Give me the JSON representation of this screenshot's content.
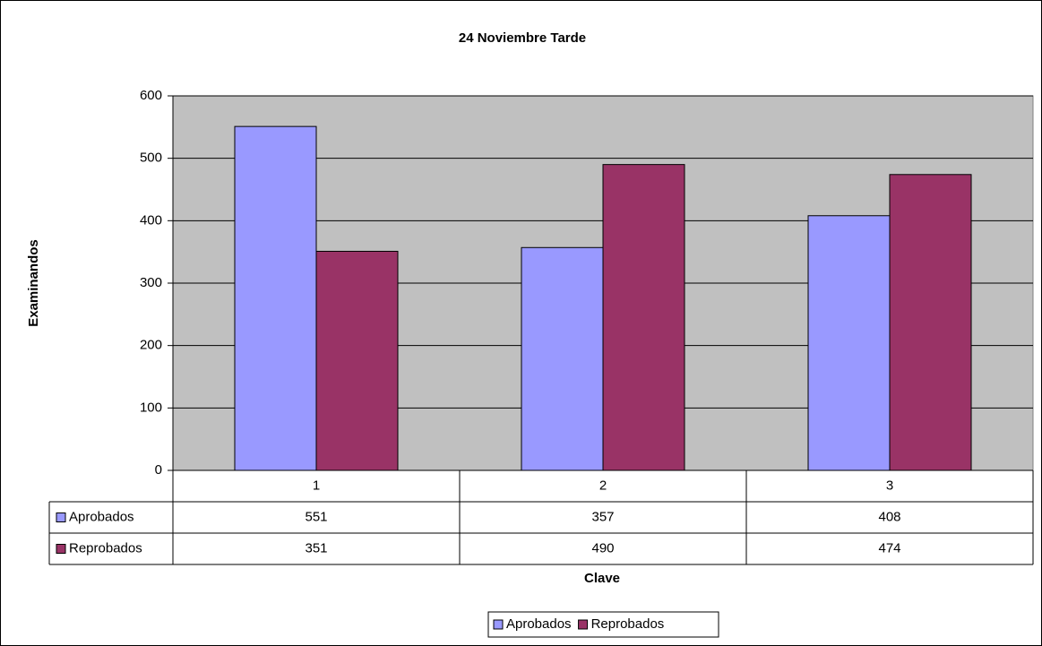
{
  "chart_data": {
    "type": "bar",
    "title": "24 Noviembre Tarde",
    "y_label": "Examinandos",
    "x_label": "Clave",
    "categories": [
      "1",
      "2",
      "3"
    ],
    "series": [
      {
        "name": "Aprobados",
        "color": "#9999ff",
        "values": [
          551,
          357,
          408
        ]
      },
      {
        "name": "Reprobados",
        "color": "#993366",
        "values": [
          351,
          490,
          474
        ]
      }
    ],
    "ylim": [
      0,
      600
    ],
    "yticks": [
      0,
      100,
      200,
      300,
      400,
      500,
      600
    ],
    "grid": true,
    "legend": "bottom",
    "data_table": true
  }
}
